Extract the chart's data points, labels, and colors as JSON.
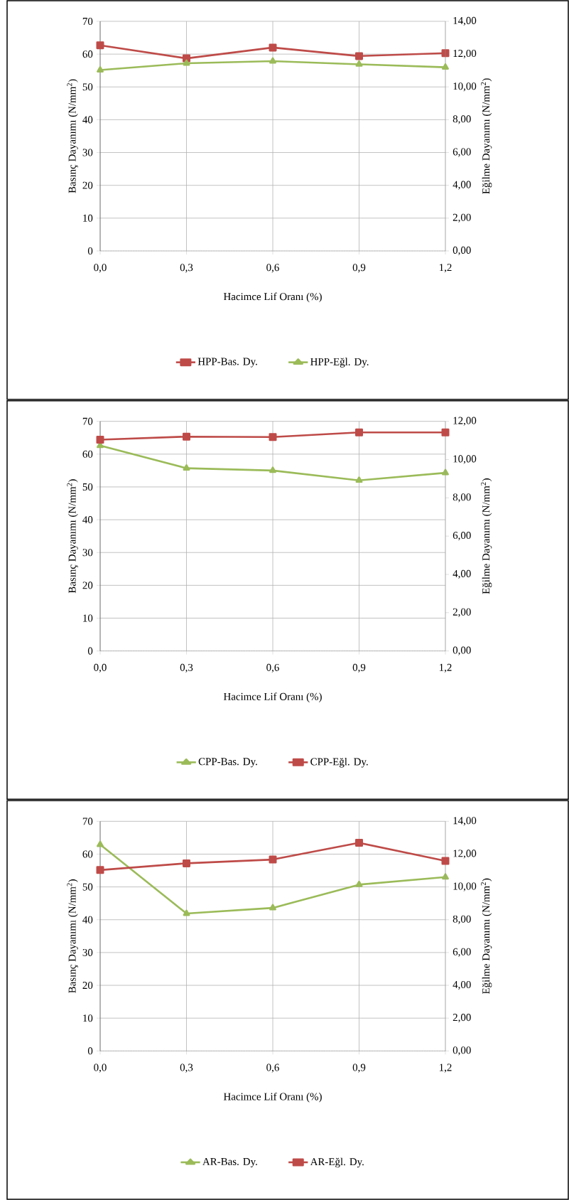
{
  "chart_data": [
    {
      "type": "line",
      "categories": [
        "0,0",
        "0,3",
        "0,6",
        "0,9",
        "1,2"
      ],
      "xlabel": "Hacimce Lif Oranı (%)",
      "ylabel": "Basınç Dayanımı (N/mm$^{2}$)",
      "y2label": "Eğilme Dayanımı (N/mm$^{2}$)",
      "ylim": [
        0,
        70
      ],
      "yticks": [
        0,
        10,
        20,
        30,
        40,
        50,
        60,
        70
      ],
      "y2lim": [
        0,
        14
      ],
      "y2ticks": [
        {
          "value": 0,
          "label": "0,00"
        },
        {
          "value": 2,
          "label": "2,00"
        },
        {
          "value": 4,
          "label": "4,00"
        },
        {
          "value": 6,
          "label": "6,00"
        },
        {
          "value": 8,
          "label": "8,00"
        },
        {
          "value": 10,
          "label": "10,00"
        },
        {
          "value": 12,
          "label": "12,00"
        },
        {
          "value": 14,
          "label": "14,00"
        }
      ],
      "grid": true,
      "legend": "bottom",
      "series": [
        {
          "name": "HPP-Bas. Dy.",
          "color": "#be4b48",
          "marker": "square",
          "axis": "y",
          "values": [
            62.7,
            58.7,
            62.0,
            59.4,
            60.3
          ]
        },
        {
          "name": "HPP-Eğl. Dy.",
          "color": "#9bbb59",
          "marker": "triangle",
          "axis": "y2",
          "values": [
            11.03,
            11.44,
            11.57,
            11.38,
            11.2
          ]
        }
      ]
    },
    {
      "type": "line",
      "categories": [
        "0,0",
        "0,3",
        "0,6",
        "0,9",
        "1,2"
      ],
      "xlabel": "Hacimce Lif Oranı (%)",
      "ylabel": "Basınç Dayanımı (N/mm$^{2}$)",
      "y2label": "Eğilme Dayanımı (N/mm$^{2}$)",
      "ylim": [
        0,
        70
      ],
      "yticks": [
        0,
        10,
        20,
        30,
        40,
        50,
        60,
        70
      ],
      "y2lim": [
        0,
        12
      ],
      "y2ticks": [
        {
          "value": 0,
          "label": "0,00"
        },
        {
          "value": 2,
          "label": "2,00"
        },
        {
          "value": 4,
          "label": "4,00"
        },
        {
          "value": 6,
          "label": "6,00"
        },
        {
          "value": 8,
          "label": "8,00"
        },
        {
          "value": 10,
          "label": "10,00"
        },
        {
          "value": 12,
          "label": "12,00"
        }
      ],
      "grid": true,
      "legend": "bottom",
      "series": [
        {
          "name": "CPP-Bas. Dy.",
          "color": "#9bbb59",
          "marker": "triangle",
          "axis": "y",
          "values": [
            62.6,
            55.7,
            55.0,
            52.0,
            54.3
          ]
        },
        {
          "name": "CPP-Eğl. Dy.",
          "color": "#be4b48",
          "marker": "square",
          "axis": "y2",
          "values": [
            11.04,
            11.2,
            11.18,
            11.42,
            11.42
          ]
        }
      ]
    },
    {
      "type": "line",
      "categories": [
        "0,0",
        "0,3",
        "0,6",
        "0,9",
        "1,2"
      ],
      "xlabel": "Hacimce Lif Oranı (%)",
      "ylabel": "Basınç Dayanımı (N/mm$^{2}$)",
      "y2label": "Eğilme Dayanımı (N/mm$^{2}$)",
      "ylim": [
        0,
        70
      ],
      "yticks": [
        0,
        10,
        20,
        30,
        40,
        50,
        60,
        70
      ],
      "y2lim": [
        0,
        14
      ],
      "y2ticks": [
        {
          "value": 0,
          "label": "0,00"
        },
        {
          "value": 2,
          "label": "2,00"
        },
        {
          "value": 4,
          "label": "4,00"
        },
        {
          "value": 6,
          "label": "6,00"
        },
        {
          "value": 8,
          "label": "8,00"
        },
        {
          "value": 10,
          "label": "10,00"
        },
        {
          "value": 12,
          "label": "12,00"
        },
        {
          "value": 14,
          "label": "14,00"
        }
      ],
      "grid": true,
      "legend": "bottom",
      "series": [
        {
          "name": "AR-Bas. Dy.",
          "color": "#9bbb59",
          "marker": "triangle",
          "axis": "y",
          "values": [
            62.9,
            41.9,
            43.6,
            50.7,
            53.0
          ]
        },
        {
          "name": "AR-Eğl. Dy.",
          "color": "#be4b48",
          "marker": "square",
          "axis": "y2",
          "values": [
            11.03,
            11.44,
            11.67,
            12.69,
            11.59
          ]
        }
      ]
    }
  ]
}
